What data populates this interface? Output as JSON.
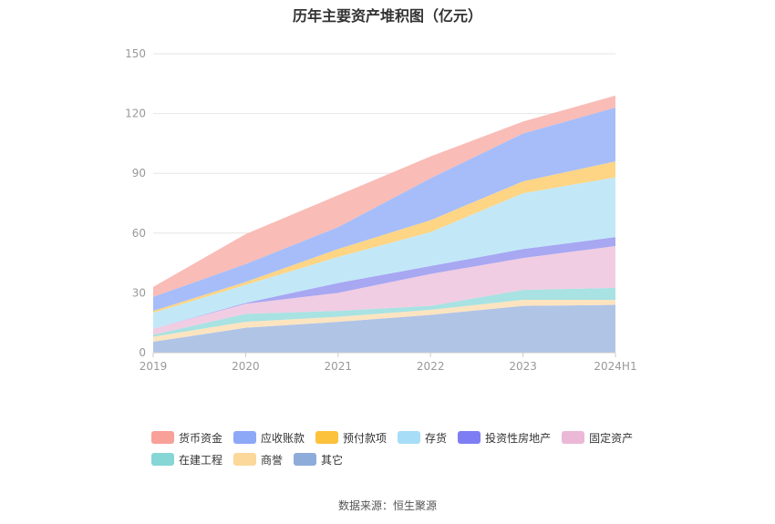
{
  "chart_data": {
    "type": "area",
    "stacked": true,
    "title": "历年主要资产堆积图（亿元）",
    "xlabel": "",
    "ylabel": "",
    "categories": [
      "2019",
      "2020",
      "2021",
      "2022",
      "2023",
      "2024H1"
    ],
    "ylim": [
      0,
      150
    ],
    "yticks": [
      0,
      30,
      60,
      90,
      120,
      150
    ],
    "grid": true,
    "legend_position": "bottom",
    "series": [
      {
        "name": "其它",
        "color": "#b0c4e6",
        "legend_color": "#8eacd9",
        "values": [
          5.5,
          12.5,
          15.5,
          19,
          23.5,
          24
        ]
      },
      {
        "name": "商誉",
        "color": "#fce4c0",
        "legend_color": "#fcd89a",
        "values": [
          2.5,
          3,
          2.5,
          2.5,
          3,
          2.5
        ]
      },
      {
        "name": "在建工程",
        "color": "#a8e2e2",
        "legend_color": "#86d6d6",
        "values": [
          1,
          4,
          3,
          2,
          5,
          6
        ]
      },
      {
        "name": "固定资产",
        "color": "#f0cde3",
        "legend_color": "#ebb8d8",
        "values": [
          3,
          5,
          9,
          16,
          16,
          21
        ]
      },
      {
        "name": "投资性房地产",
        "color": "#a7a7f2",
        "legend_color": "#7e7ef2",
        "values": [
          0,
          0.5,
          5,
          4,
          4.5,
          4.5
        ]
      },
      {
        "name": "存货",
        "color": "#c2e8f8",
        "legend_color": "#a8ddf7",
        "values": [
          8,
          9,
          13,
          17,
          28,
          30
        ]
      },
      {
        "name": "预付款项",
        "color": "#fdd585",
        "legend_color": "#fcc23c",
        "values": [
          1,
          1.5,
          4,
          6,
          6,
          8
        ]
      },
      {
        "name": "应收账款",
        "color": "#a6bdf9",
        "legend_color": "#8da8f7",
        "values": [
          7,
          9,
          11,
          21,
          24,
          27
        ]
      },
      {
        "name": "货币资金",
        "color": "#f9bcb6",
        "legend_color": "#f7a199",
        "values": [
          5,
          15,
          16,
          11,
          6,
          6
        ]
      }
    ]
  },
  "legend_order": [
    {
      "name": "货币资金",
      "color": "#f7a199"
    },
    {
      "name": "应收账款",
      "color": "#8da8f7"
    },
    {
      "name": "预付款项",
      "color": "#fcc23c"
    },
    {
      "name": "存货",
      "color": "#a8ddf7"
    },
    {
      "name": "投资性房地产",
      "color": "#7e7ef2"
    },
    {
      "name": "固定资产",
      "color": "#ebb8d8"
    },
    {
      "name": "在建工程",
      "color": "#86d6d6"
    },
    {
      "name": "商誉",
      "color": "#fcd89a"
    },
    {
      "name": "其它",
      "color": "#8eacd9"
    }
  ],
  "source": "数据来源：恒生聚源"
}
